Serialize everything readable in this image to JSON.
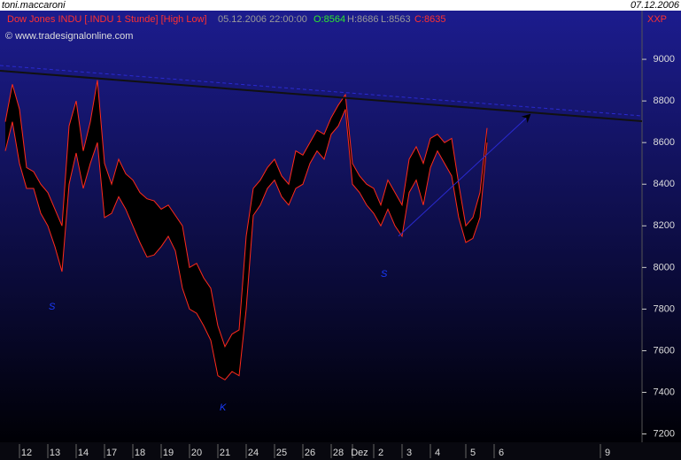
{
  "chart_data": {
    "type": "band",
    "user": "toni.maccaroni",
    "date": "07.12.2006",
    "title": "Dow Jones INDU [.INDU  1 Stunde] [High Low]",
    "timestamp": "05.12.2006 22:00:00",
    "quote": [
      "O:8564",
      "H:8686",
      "L:8563",
      "C:8635"
    ],
    "source": "© www.tradesignalonline.com",
    "symbol": "XXP",
    "annotations": [
      "S",
      "S",
      "K"
    ],
    "categories": [
      null,
      null,
      null,
      "12",
      null,
      null,
      null,
      "13",
      null,
      null,
      null,
      "14",
      null,
      null,
      null,
      "17",
      null,
      null,
      null,
      "18",
      null,
      null,
      null,
      "19",
      null,
      null,
      null,
      "20",
      null,
      null,
      null,
      "21",
      null,
      null,
      null,
      "24",
      null,
      null,
      null,
      "25",
      null,
      null,
      null,
      "26",
      null,
      null,
      null,
      "28",
      null,
      null,
      "Dez",
      null,
      null,
      "2",
      null,
      null,
      null,
      "3",
      null,
      null,
      null,
      "4",
      null,
      null,
      null,
      null,
      "5",
      null,
      null,
      null,
      "6",
      null,
      null,
      null,
      null,
      null,
      null,
      null,
      null,
      null,
      null,
      null,
      null,
      null,
      null,
      "9",
      null,
      null,
      null,
      null,
      null
    ],
    "series": [
      {
        "color": "#ff2a1a",
        "values": [
          8700,
          8880,
          8760,
          8480,
          8460,
          8400,
          8360,
          8280,
          8200,
          8680,
          8800,
          8560,
          8700,
          8900,
          8500,
          8400,
          8520,
          8450,
          8420,
          8360,
          8330,
          8320,
          8280,
          8300,
          8250,
          8200,
          8000,
          8020,
          7950,
          7900,
          7720,
          7620,
          7680,
          7700,
          8150,
          8380,
          8420,
          8480,
          8520,
          8440,
          8400,
          8560,
          8540,
          8600,
          8660,
          8640,
          8720,
          8780,
          8830,
          8500,
          8440,
          8400,
          8380,
          8300,
          8420,
          8360,
          8300,
          8520,
          8580,
          8500,
          8620,
          8640,
          8600,
          8620,
          8400,
          8200,
          8240,
          8360,
          8670,
          null,
          null,
          null,
          null,
          null,
          null,
          null,
          null,
          null,
          null,
          null,
          null,
          null,
          null,
          null,
          null,
          null,
          null,
          null,
          null,
          null,
          null
        ]
      },
      {
        "color": "#ff2a1a",
        "values": [
          8560,
          8700,
          8500,
          8380,
          8380,
          8260,
          8200,
          8100,
          7980,
          8400,
          8550,
          8380,
          8500,
          8600,
          8240,
          8260,
          8340,
          8280,
          8200,
          8120,
          8050,
          8060,
          8100,
          8150,
          8080,
          7900,
          7800,
          7780,
          7720,
          7650,
          7480,
          7460,
          7500,
          7480,
          7800,
          8250,
          8300,
          8380,
          8420,
          8340,
          8300,
          8380,
          8400,
          8500,
          8560,
          8520,
          8640,
          8680,
          8760,
          8400,
          8360,
          8300,
          8260,
          8200,
          8280,
          8200,
          8150,
          8360,
          8420,
          8300,
          8480,
          8560,
          8500,
          8440,
          8240,
          8120,
          8140,
          8240,
          8600,
          null,
          null,
          null,
          null,
          null,
          null,
          null,
          null,
          null,
          null,
          null,
          null,
          null,
          null,
          null,
          null,
          null,
          null,
          null,
          null,
          null,
          null
        ]
      }
    ],
    "ylim": [
      7160,
      9234
    ],
    "yticks": [
      7200,
      7400,
      7600,
      7800,
      8000,
      8200,
      8400,
      8600,
      8800,
      9000
    ]
  }
}
